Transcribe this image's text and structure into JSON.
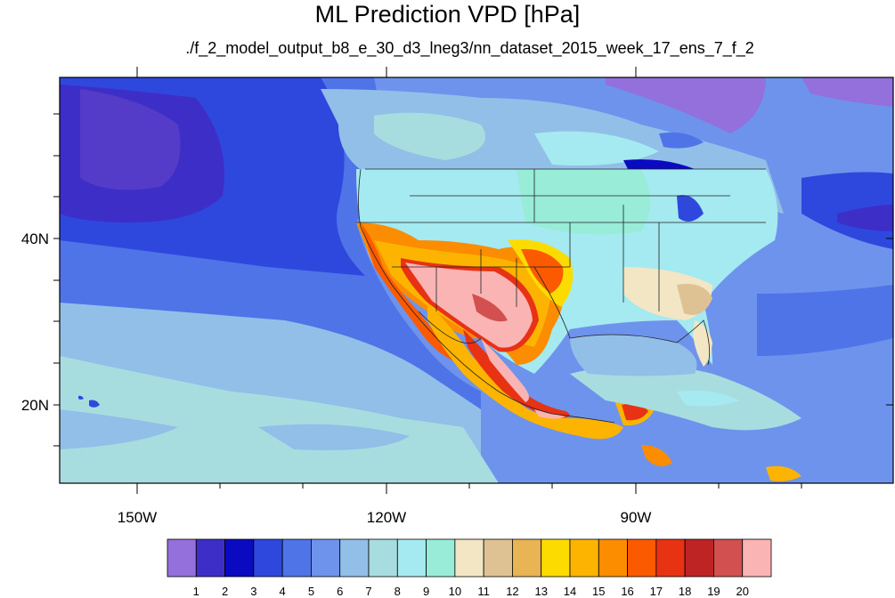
{
  "title": "ML Prediction VPD [hPa]",
  "subtitle": "./f_2_model_output_b8_e_30_d3_lneg3/nn_dataset_2015_week_17_ens_7_f_2",
  "map": {
    "lon_labels": [
      "150W",
      "120W",
      "90W"
    ],
    "lat_labels": [
      "40N",
      "20N"
    ]
  },
  "colorbar": {
    "labels": [
      "1",
      "2",
      "3",
      "4",
      "5",
      "6",
      "7",
      "8",
      "9",
      "10",
      "11",
      "12",
      "13",
      "14",
      "15",
      "16",
      "17",
      "18",
      "19",
      "20"
    ],
    "colors": [
      "#9370db",
      "#3e2ec8",
      "#0a0ac0",
      "#2e48de",
      "#4e74e8",
      "#6e93ec",
      "#92bfe8",
      "#a8dde0",
      "#a4eaf0",
      "#98ecd8",
      "#f2e6c4",
      "#dfc294",
      "#e8b454",
      "#fcdc00",
      "#fcb400",
      "#fc8c00",
      "#fc5a00",
      "#e83214",
      "#be2424",
      "#d25050",
      "#fab4b4"
    ]
  }
}
